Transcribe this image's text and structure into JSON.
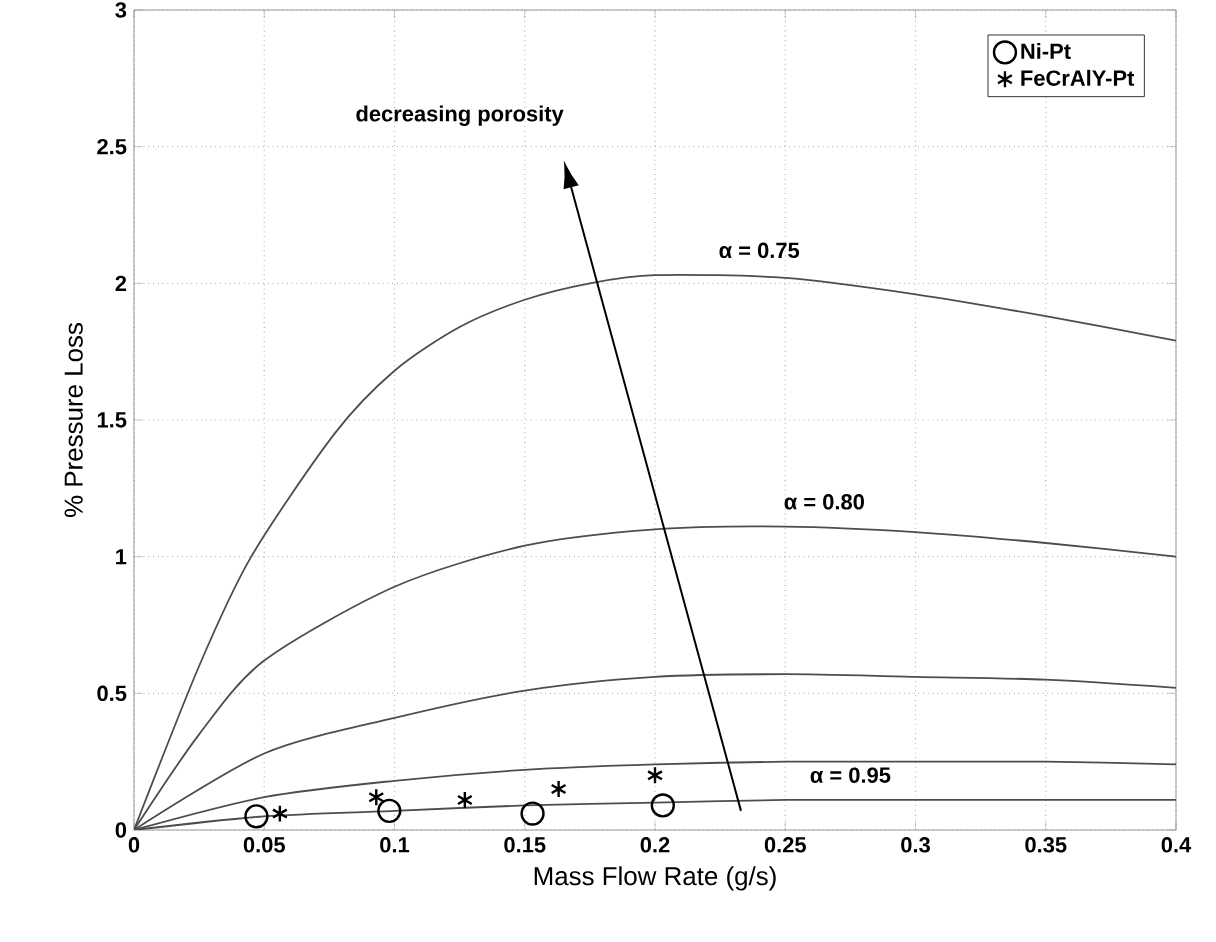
{
  "chart_data": {
    "type": "line",
    "xlabel": "Mass Flow Rate (g/s)",
    "ylabel": "% Pressure Loss",
    "xlim": [
      0,
      0.4
    ],
    "ylim": [
      0,
      3
    ],
    "xticks": [
      0,
      0.05,
      0.1,
      0.15,
      0.2,
      0.25,
      0.3,
      0.35,
      0.4
    ],
    "yticks": [
      0,
      0.5,
      1,
      1.5,
      2,
      2.5,
      3
    ],
    "grid": true,
    "legend": "top right",
    "series": [
      {
        "color": "#4d4d4d",
        "x": [
          0,
          0.025,
          0.045,
          0.077,
          0.1,
          0.125,
          0.15,
          0.175,
          0.2,
          0.25,
          0.3,
          0.35,
          0.4
        ],
        "values": [
          0,
          0.6,
          1,
          1.45,
          1.68,
          1.84,
          1.94,
          2.0,
          2.03,
          2.02,
          1.96,
          1.88,
          1.79
        ]
      },
      {
        "color": "#4d4d4d",
        "x": [
          0,
          0.025,
          0.05,
          0.1,
          0.15,
          0.2,
          0.25,
          0.3,
          0.35,
          0.4
        ],
        "values": [
          0,
          0.35,
          0.62,
          0.89,
          1.04,
          1.1,
          1.11,
          1.09,
          1.05,
          1
        ]
      },
      {
        "color": "#4d4d4d",
        "x": [
          0,
          0.05,
          0.1,
          0.15,
          0.2,
          0.25,
          0.3,
          0.35,
          0.4
        ],
        "values": [
          0,
          0.28,
          0.41,
          0.51,
          0.56,
          0.57,
          0.56,
          0.55,
          0.52
        ]
      },
      {
        "color": "#4d4d4d",
        "x": [
          0,
          0.05,
          0.1,
          0.15,
          0.2,
          0.25,
          0.3,
          0.35,
          0.4
        ],
        "values": [
          0,
          0.12,
          0.18,
          0.22,
          0.24,
          0.25,
          0.25,
          0.25,
          0.24
        ]
      },
      {
        "color": "#4d4d4d",
        "x": [
          0,
          0.05,
          0.1,
          0.15,
          0.2,
          0.25,
          0.3,
          0.35,
          0.4
        ],
        "values": [
          0,
          0.05,
          0.07,
          0.09,
          0.1,
          0.11,
          0.11,
          0.11,
          0.11
        ]
      },
      {
        "type": "scatter",
        "name": "Ni-Pt",
        "color": "#000000",
        "marker": "circle",
        "x": [
          0.047,
          0.098,
          0.153,
          0.203
        ],
        "values": [
          0.05,
          0.07,
          0.06,
          0.09
        ]
      },
      {
        "type": "scatter",
        "name": "FeCrAlY-Pt",
        "color": "#000000",
        "marker": "cross",
        "x": [
          0.056,
          0.093,
          0.127,
          0.163,
          0.2
        ],
        "values": [
          0.06,
          0.12,
          0.11,
          0.15,
          0.2
        ]
      }
    ],
    "annotations": [
      "decreasing porosity",
      {
        "text": "α = 0.75",
        "x": 0.24,
        "y": 2.03
      },
      {
        "text": "α = 0.80",
        "x": 0.265,
        "y": 1.11
      },
      {
        "text": "α = 0.95",
        "x": 0.275,
        "y": 0.11
      }
    ]
  }
}
